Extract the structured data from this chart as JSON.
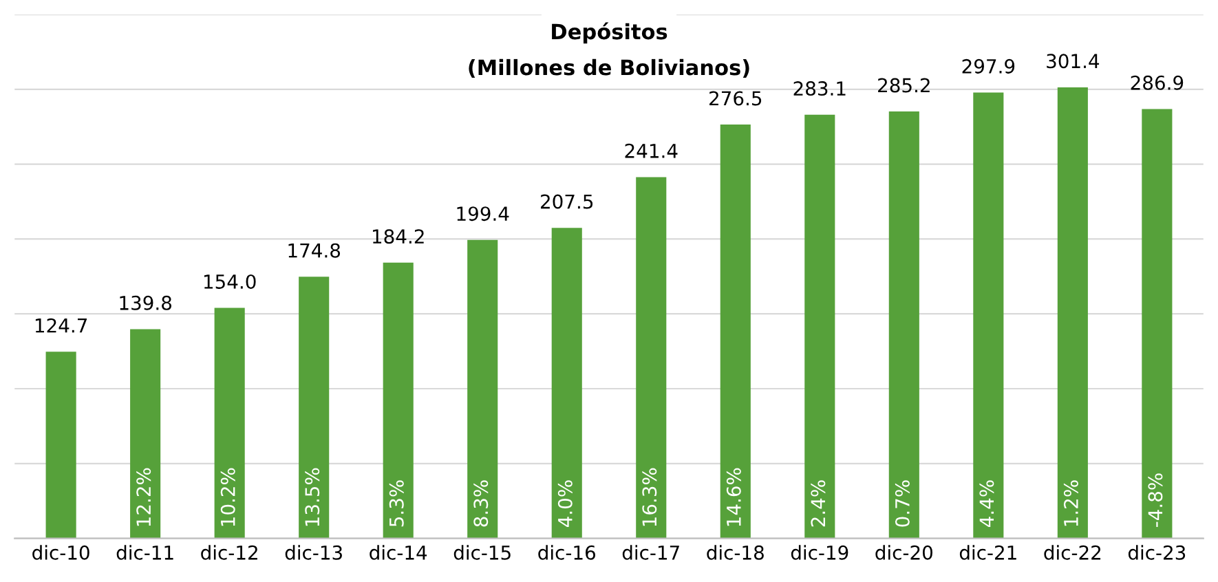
{
  "chart_data": {
    "type": "bar",
    "title": "Depósitos",
    "subtitle": "(Millones de Bolivianos)",
    "categories": [
      "dic-10",
      "dic-11",
      "dic-12",
      "dic-13",
      "dic-14",
      "dic-15",
      "dic-16",
      "dic-17",
      "dic-18",
      "dic-19",
      "dic-20",
      "dic-21",
      "dic-22",
      "dic-23"
    ],
    "values": [
      124.7,
      139.8,
      154.0,
      174.8,
      184.2,
      199.4,
      207.5,
      241.4,
      276.5,
      283.1,
      285.2,
      297.9,
      301.4,
      286.9
    ],
    "value_labels": [
      "124.7",
      "139.8",
      "154.0",
      "174.8",
      "184.2",
      "199.4",
      "207.5",
      "241.4",
      "276.5",
      "283.1",
      "285.2",
      "297.9",
      "301.4",
      "286.9"
    ],
    "color": "#56a13a",
    "ylim": [
      0,
      350
    ],
    "yticks": [
      {
        "value": 0,
        "label": null
      },
      {
        "value": 50,
        "label": null
      },
      {
        "value": 100,
        "label": null
      },
      {
        "value": 150,
        "label": null
      },
      {
        "value": 200,
        "label": null
      },
      {
        "value": 250,
        "label": null
      },
      {
        "value": 300,
        "label": null
      },
      {
        "value": 350,
        "label": null
      }
    ],
    "grid": "y",
    "tick_labels": "x",
    "annotations": [
      "12.2%",
      "10.2%",
      "13.5%",
      "5.3%",
      "8.3%",
      "4.0%",
      "16.3%",
      "14.6%",
      "2.4%",
      "0.7%",
      "4.4%",
      "1.2%",
      "-4.8%"
    ]
  }
}
